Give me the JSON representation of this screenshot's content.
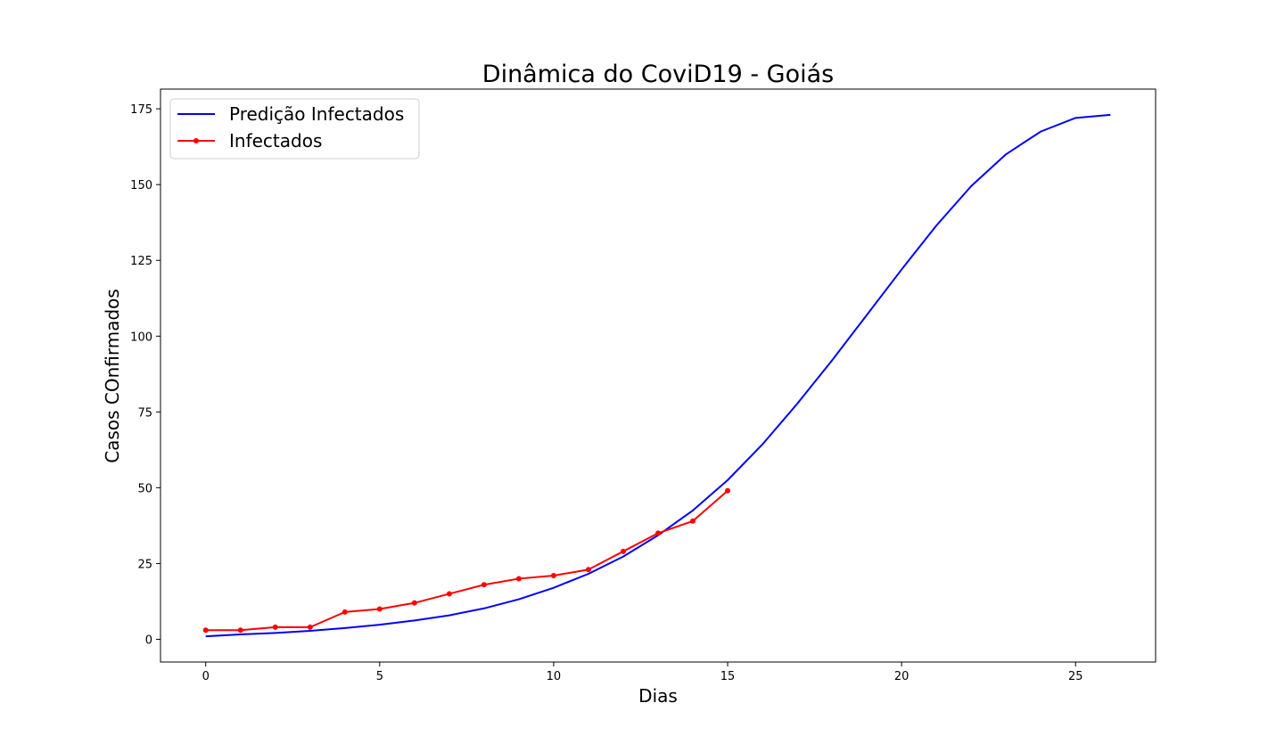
{
  "chart_data": {
    "type": "line",
    "title": "Dinâmica do CoviD19 - Goiás",
    "xlabel": "Dias",
    "ylabel": "Casos COnfirmados",
    "xlim": [
      -1.3,
      27.3
    ],
    "ylim": [
      -7.5,
      181.5
    ],
    "xticks": [
      0,
      5,
      10,
      15,
      20,
      25
    ],
    "yticks": [
      0,
      25,
      50,
      75,
      100,
      125,
      150,
      175
    ],
    "grid": false,
    "legend": "top-left",
    "series": [
      {
        "name": "Predição Infectados",
        "color": "#0000ff",
        "marker": false,
        "x": [
          0,
          1,
          2,
          3,
          4,
          5,
          6,
          7,
          8,
          9,
          10,
          11,
          12,
          13,
          14,
          15,
          16,
          17,
          18,
          19,
          20,
          21,
          22,
          23,
          24,
          25,
          26
        ],
        "y": [
          1.0,
          1.6,
          2.1,
          2.8,
          3.7,
          4.8,
          6.2,
          7.9,
          10.2,
          13.2,
          17.0,
          21.6,
          27.3,
          34.3,
          42.5,
          52.5,
          64.3,
          77.7,
          92.0,
          107.0,
          122.0,
          136.5,
          149.5,
          160.0,
          167.5,
          172.0,
          173.0
        ]
      },
      {
        "name": "Infectados",
        "color": "#ff0000",
        "marker": true,
        "x": [
          0,
          1,
          2,
          3,
          4,
          5,
          6,
          7,
          8,
          9,
          10,
          11,
          12,
          13,
          14,
          15
        ],
        "y": [
          3,
          3,
          4,
          4,
          9,
          10,
          12,
          15,
          18,
          20,
          21,
          23,
          29,
          35,
          39,
          49
        ]
      }
    ]
  }
}
